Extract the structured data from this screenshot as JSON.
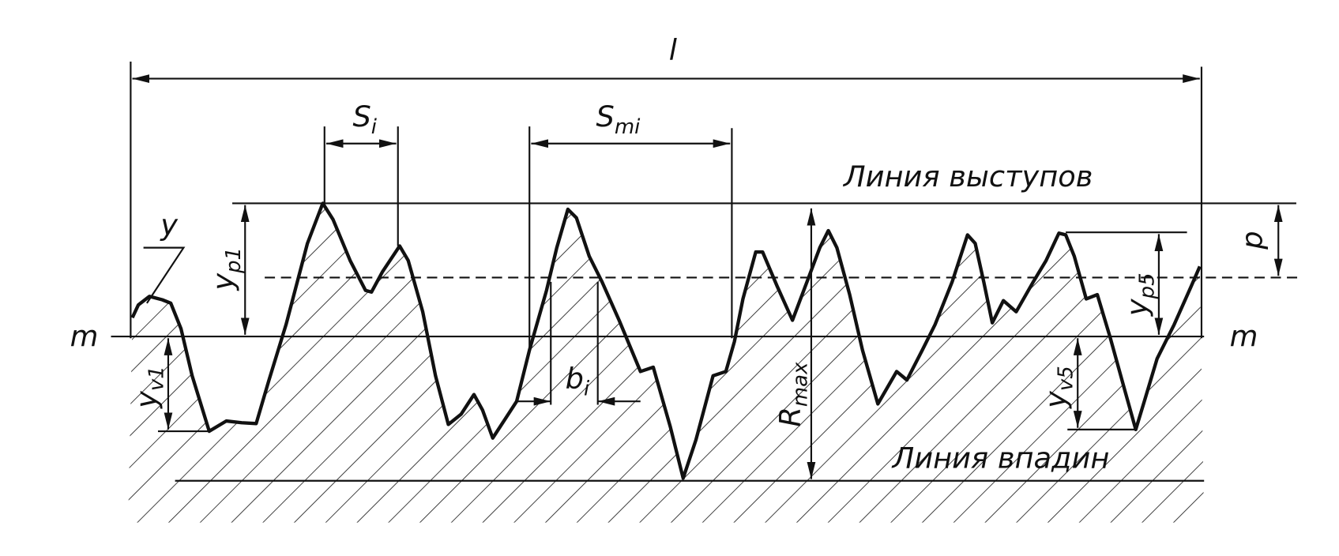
{
  "labels": {
    "length": "l",
    "step_local": {
      "main": "S",
      "sub": "i"
    },
    "step_mean": {
      "main": "S",
      "sub": "mi"
    },
    "peak_line": "Линия выступов",
    "valley_line": "Линия впадин",
    "ordinate": "y",
    "peak_height_1": {
      "main": "y",
      "sub": "p1"
    },
    "valley_depth_1": {
      "main": "y",
      "sub": "v1"
    },
    "peak_height_5": {
      "main": "y",
      "sub": "p5"
    },
    "valley_depth_5": {
      "main": "y",
      "sub": "v5"
    },
    "mean_line_left": "m",
    "mean_line_right": "m",
    "section_length": {
      "main": "b",
      "sub": "i"
    },
    "max_height": {
      "main": "R",
      "sub": "max"
    },
    "level": "p"
  }
}
